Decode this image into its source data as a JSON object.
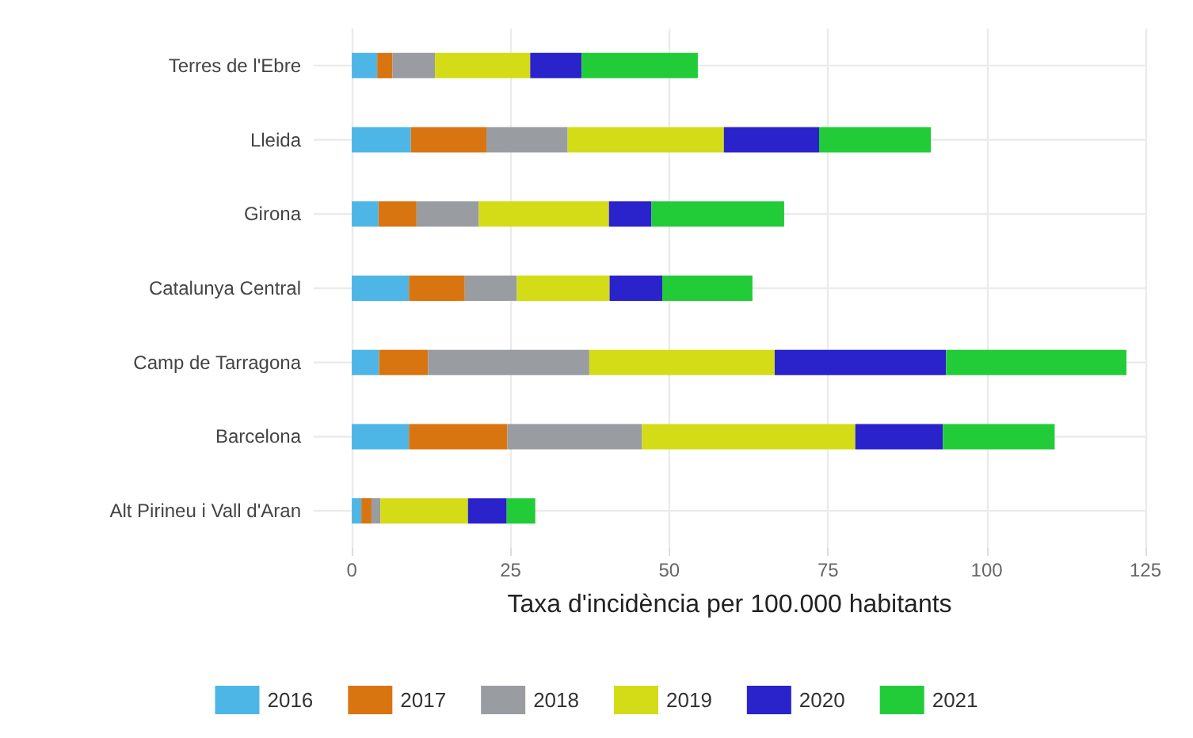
{
  "chart_data": {
    "type": "bar",
    "orientation": "horizontal",
    "stacked": true,
    "xlabel": "Taxa d'incidència per 100.000 habitants",
    "categories": [
      "Terres de l'Ebre",
      "Lleida",
      "Girona",
      "Catalunya Central",
      "Camp de Tarragona",
      "Barcelona",
      "Alt Pirineu i Vall d'Aran"
    ],
    "series": [
      {
        "name": "2016",
        "color": "#4db6e6",
        "values": [
          4.0,
          9.3,
          4.2,
          9.0,
          4.3,
          9.0,
          1.5
        ]
      },
      {
        "name": "2017",
        "color": "#d97510",
        "values": [
          2.4,
          11.9,
          6.0,
          8.8,
          7.7,
          15.5,
          1.6
        ]
      },
      {
        "name": "2018",
        "color": "#999ca1",
        "values": [
          6.7,
          12.8,
          9.8,
          8.2,
          25.4,
          21.2,
          1.4
        ]
      },
      {
        "name": "2019",
        "color": "#d3dc17",
        "values": [
          15.0,
          24.6,
          20.5,
          14.6,
          29.2,
          33.6,
          13.8
        ]
      },
      {
        "name": "2020",
        "color": "#2a22cb",
        "values": [
          8.1,
          15.0,
          6.7,
          8.3,
          27.0,
          13.8,
          6.1
        ]
      },
      {
        "name": "2021",
        "color": "#22cc38",
        "values": [
          18.3,
          17.6,
          20.9,
          14.2,
          28.4,
          17.6,
          4.5
        ]
      }
    ],
    "xlim": [
      -6,
      125
    ],
    "xticks": [
      0,
      25,
      50,
      75,
      100,
      125
    ],
    "grid": true,
    "legend": "bottom"
  }
}
